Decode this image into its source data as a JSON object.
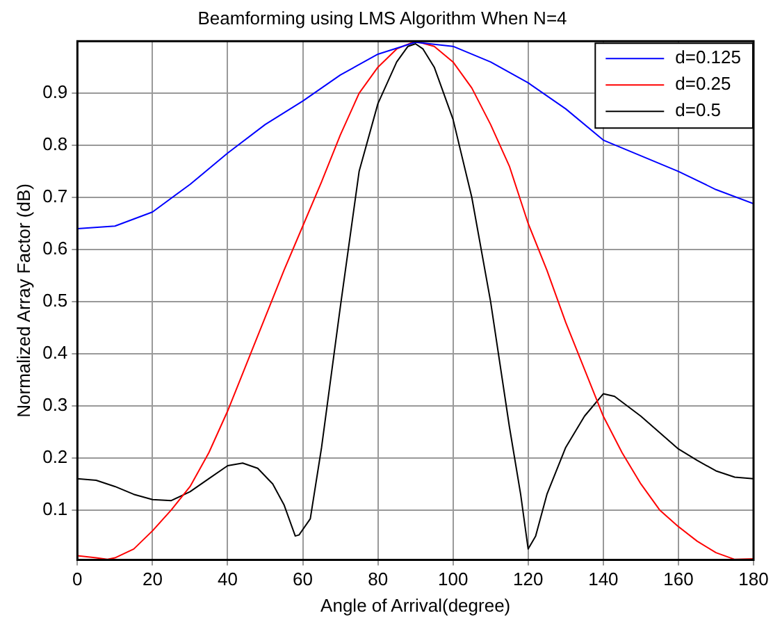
{
  "chart_data": {
    "type": "line",
    "title": "Beamforming using LMS Algorithm When N=4",
    "xlabel": "Angle of Arrival(degree)",
    "ylabel": "Normalized Array Factor (dB)",
    "xlim": [
      0,
      180
    ],
    "xticks": [
      0,
      20,
      40,
      60,
      80,
      100,
      120,
      140,
      160,
      180
    ],
    "ylim": [
      0.004,
      1
    ],
    "yticks": [
      0.1,
      0.2,
      0.3,
      0.4,
      0.5,
      0.6,
      0.7,
      0.8,
      0.9
    ],
    "grid": true,
    "legend": "top right",
    "marker": "none",
    "series": [
      {
        "name": "d=0.125",
        "color": "#0000ff",
        "x": [
          0,
          10,
          20,
          30,
          40,
          50,
          60,
          70,
          80,
          90,
          100,
          110,
          120,
          130,
          140,
          150,
          160,
          170,
          180
        ],
        "values": [
          0.64,
          0.645,
          0.672,
          0.725,
          0.785,
          0.84,
          0.885,
          0.935,
          0.975,
          0.998,
          0.99,
          0.96,
          0.92,
          0.87,
          0.81,
          0.78,
          0.75,
          0.715,
          0.688
        ]
      },
      {
        "name": "d=0.25",
        "color": "#ff0000",
        "x": [
          0,
          5,
          8,
          10,
          15,
          20,
          25,
          30,
          35,
          40,
          45,
          50,
          55,
          60,
          65,
          70,
          75,
          80,
          85,
          90,
          95,
          100,
          105,
          110,
          115,
          120,
          125,
          130,
          135,
          140,
          145,
          150,
          155,
          160,
          165,
          170,
          175,
          180
        ],
        "values": [
          0.012,
          0.008,
          0.005,
          0.008,
          0.025,
          0.06,
          0.1,
          0.145,
          0.21,
          0.29,
          0.38,
          0.47,
          0.56,
          0.645,
          0.73,
          0.82,
          0.9,
          0.95,
          0.985,
          1.0,
          0.99,
          0.96,
          0.91,
          0.84,
          0.76,
          0.65,
          0.56,
          0.46,
          0.37,
          0.28,
          0.21,
          0.15,
          0.1,
          0.068,
          0.04,
          0.018,
          0.005,
          0.006
        ]
      },
      {
        "name": "d=0.5",
        "color": "#000000",
        "x": [
          0,
          5,
          10,
          15,
          20,
          25,
          30,
          35,
          40,
          44,
          48,
          52,
          55,
          58,
          59,
          62,
          65,
          70,
          75,
          80,
          85,
          88,
          90,
          92,
          95,
          100,
          105,
          110,
          115,
          118,
          120,
          122,
          125,
          130,
          135,
          140,
          143,
          150,
          160,
          165,
          170,
          175,
          180
        ],
        "values": [
          0.16,
          0.157,
          0.145,
          0.13,
          0.12,
          0.118,
          0.135,
          0.16,
          0.185,
          0.19,
          0.18,
          0.15,
          0.11,
          0.05,
          0.052,
          0.083,
          0.22,
          0.49,
          0.75,
          0.88,
          0.96,
          0.99,
          0.995,
          0.985,
          0.95,
          0.85,
          0.7,
          0.5,
          0.26,
          0.13,
          0.025,
          0.05,
          0.13,
          0.22,
          0.28,
          0.323,
          0.318,
          0.28,
          0.217,
          0.195,
          0.175,
          0.163,
          0.16
        ]
      }
    ]
  }
}
